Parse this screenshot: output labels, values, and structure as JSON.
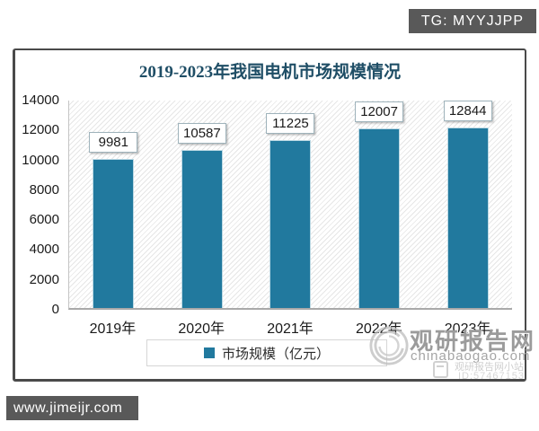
{
  "overlays": {
    "tg_badge": "TG: MYYJJPP",
    "footer_url": "www.jimeijr.com"
  },
  "watermark": {
    "brand": "观研报告网",
    "site": "chinabaogao.com",
    "mini_label": "观研报告网小站",
    "mini_id": "ID:57467153"
  },
  "chart_data": {
    "type": "bar",
    "title": "2019-2023年我国电机市场规模情况",
    "categories": [
      "2019年",
      "2020年",
      "2021年",
      "2022年",
      "2023年"
    ],
    "values": [
      9981,
      10587,
      11225,
      12007,
      12844
    ],
    "series_name": "市场规模",
    "legend": [
      "市场规模（亿元）"
    ],
    "legend_position": "bottom",
    "xlabel": "",
    "ylabel": "",
    "ylim": [
      0,
      14000
    ],
    "y_ticks": [
      0,
      2000,
      4000,
      6000,
      8000,
      10000,
      12000,
      14000
    ],
    "grid": false,
    "data_labels": true,
    "plot_background": "diagonal-hatch"
  },
  "colors": {
    "bar": "#21799E",
    "title_text": "#1F4E66",
    "badge_bg": "#595959",
    "footer_bg": "#595959",
    "watermark_gray": "#9B9B9B"
  }
}
